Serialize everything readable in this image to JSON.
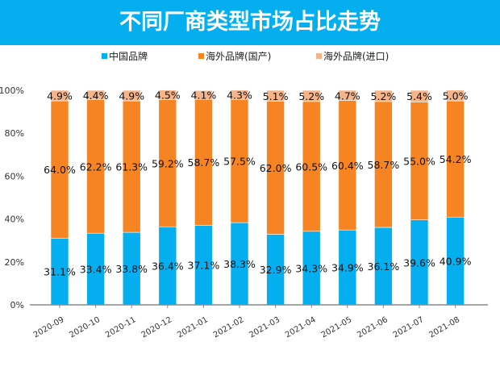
{
  "chart_data": {
    "type": "bar",
    "stacked": true,
    "title": "不同厂商类型市场占比走势",
    "categories": [
      "2020-09",
      "2020-10",
      "2020-11",
      "2020-12",
      "2021-01",
      "2021-02",
      "2021-03",
      "2021-04",
      "2021-05",
      "2021-06",
      "2021-07",
      "2021-08"
    ],
    "series": [
      {
        "name": "中国品牌",
        "color": "#05aeee",
        "values": [
          31.1,
          33.4,
          33.8,
          36.4,
          37.1,
          38.3,
          32.9,
          34.3,
          34.9,
          36.1,
          39.6,
          40.9
        ]
      },
      {
        "name": "海外品牌(国产)",
        "color": "#f68423",
        "values": [
          64.0,
          62.2,
          61.3,
          59.2,
          58.7,
          57.5,
          62.0,
          60.5,
          60.4,
          58.7,
          55.0,
          54.2
        ]
      },
      {
        "name": "海外品牌(进口)",
        "color": "#f5b48a",
        "values": [
          4.9,
          4.4,
          4.9,
          4.5,
          4.1,
          4.3,
          5.1,
          5.2,
          4.7,
          5.2,
          5.4,
          5.0
        ]
      }
    ],
    "yticks": [
      "0%",
      "20%",
      "40%",
      "60%",
      "80%",
      "100%"
    ],
    "ylim": [
      0,
      100
    ],
    "legend": "top",
    "grid": false
  }
}
